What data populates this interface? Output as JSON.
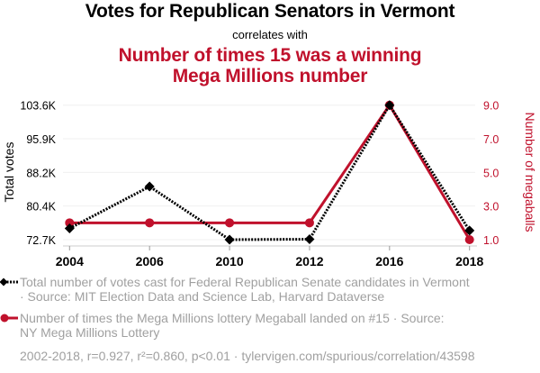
{
  "titles": {
    "main": "Votes for Republican Senators in Vermont",
    "connector": "correlates with",
    "second_line1": "Number of times 15 was a winning",
    "second_line2": "Mega Millions number"
  },
  "colors": {
    "series1": "#000000",
    "series2": "#c0112c",
    "grid": "#f0f0f0",
    "axis": "#cccccc",
    "muted_text": "#a0a0a0"
  },
  "chart_data": {
    "type": "line",
    "title": "Votes for Republican Senators in Vermont correlates with Number of times 15 was a winning Mega Millions number",
    "categories": [
      "2004",
      "2006",
      "2010",
      "2012",
      "2016",
      "2018"
    ],
    "series": [
      {
        "name": "Total votes",
        "axis": "left",
        "style": "dotted-line-diamond",
        "values": [
          75.3,
          84.9,
          72.7,
          72.8,
          103.6,
          74.8
        ],
        "unit": "K"
      },
      {
        "name": "Number of megaballs",
        "axis": "right",
        "style": "solid-line-circle",
        "values": [
          2,
          2,
          2,
          2,
          9,
          1
        ]
      }
    ],
    "y_left": {
      "label": "Total votes",
      "range": [
        72.7,
        103.6
      ],
      "ticks": [
        "72.7K",
        "80.4K",
        "88.2K",
        "95.9K",
        "103.6K"
      ]
    },
    "y_right": {
      "label": "Number of megaballs",
      "range": [
        1.0,
        9.0
      ],
      "ticks": [
        "1.0",
        "3.0",
        "5.0",
        "7.0",
        "9.0"
      ]
    },
    "grid": true,
    "legend_position": "bottom"
  },
  "legend": {
    "series1_line1": "Total number of votes cast for Federal Republican Senate candidates in Vermont",
    "series1_line2": "· Source: MIT Election Data and Science Lab, Harvard Dataverse",
    "series2_line1": "Number of times the Mega Millions lottery Megaball landed on #15 · Source:",
    "series2_line2": "NY Mega Millions Lottery"
  },
  "footer": "2002-2018, r=0.927, r²=0.860, p<0.01 · tylervigen.com/spurious/correlation/43598"
}
